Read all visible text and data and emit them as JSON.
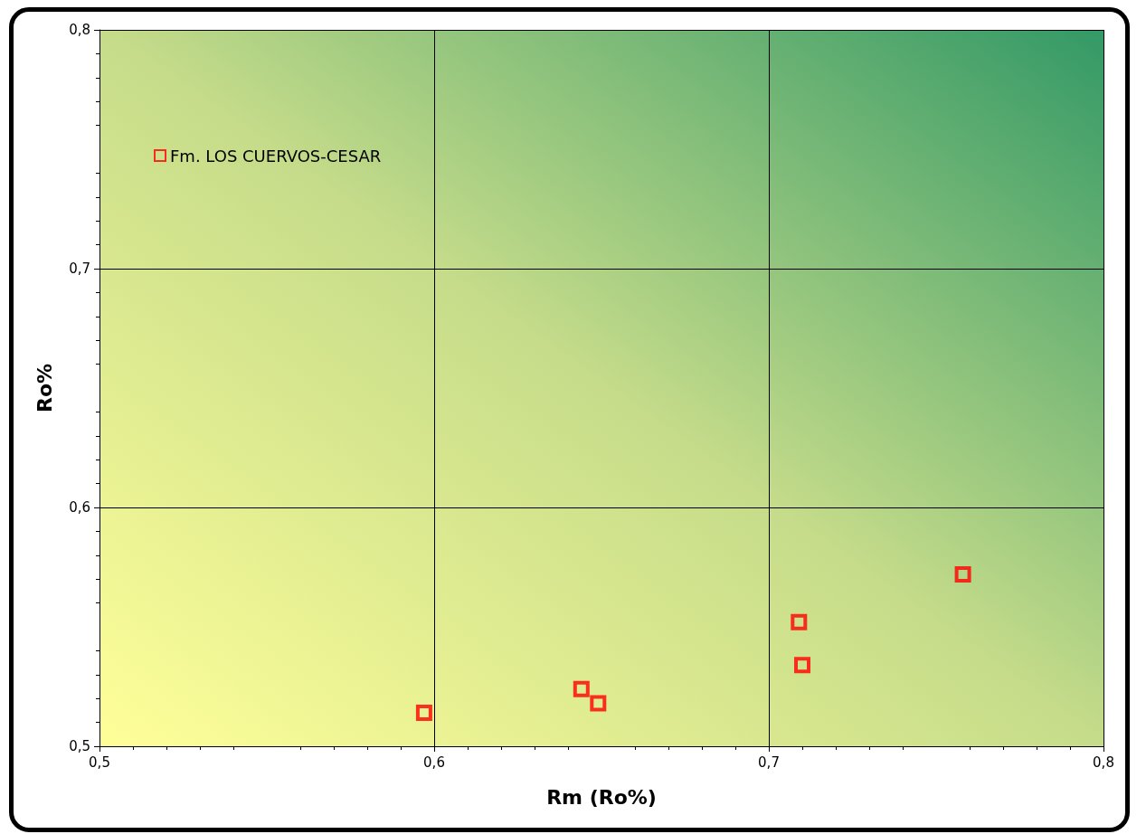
{
  "chart_data": {
    "type": "scatter",
    "xlabel": "Rm (Ro%)",
    "ylabel": "Ro%",
    "x": [
      0.597,
      0.644,
      0.649,
      0.709,
      0.71,
      0.758
    ],
    "series": [
      {
        "name": "Fm. LOS CUERVOS-CESAR",
        "color": "#ff0000",
        "values": [
          0.514,
          0.524,
          0.518,
          0.552,
          0.534,
          0.572
        ]
      }
    ],
    "xlim": [
      0.5,
      0.8
    ],
    "ylim": [
      0.5,
      0.8
    ],
    "xticks": [
      {
        "value": 0.5,
        "label": "0,5"
      },
      {
        "value": 0.6,
        "label": "0,6"
      },
      {
        "value": 0.7,
        "label": "0,7"
      },
      {
        "value": 0.8,
        "label": "0,8"
      }
    ],
    "yticks": [
      {
        "value": 0.5,
        "label": "0,5"
      },
      {
        "value": 0.6,
        "label": "0,6"
      },
      {
        "value": 0.7,
        "label": "0,7"
      },
      {
        "value": 0.8,
        "label": "0,8"
      }
    ],
    "grid": true,
    "legend": "top left",
    "marker": "square"
  }
}
